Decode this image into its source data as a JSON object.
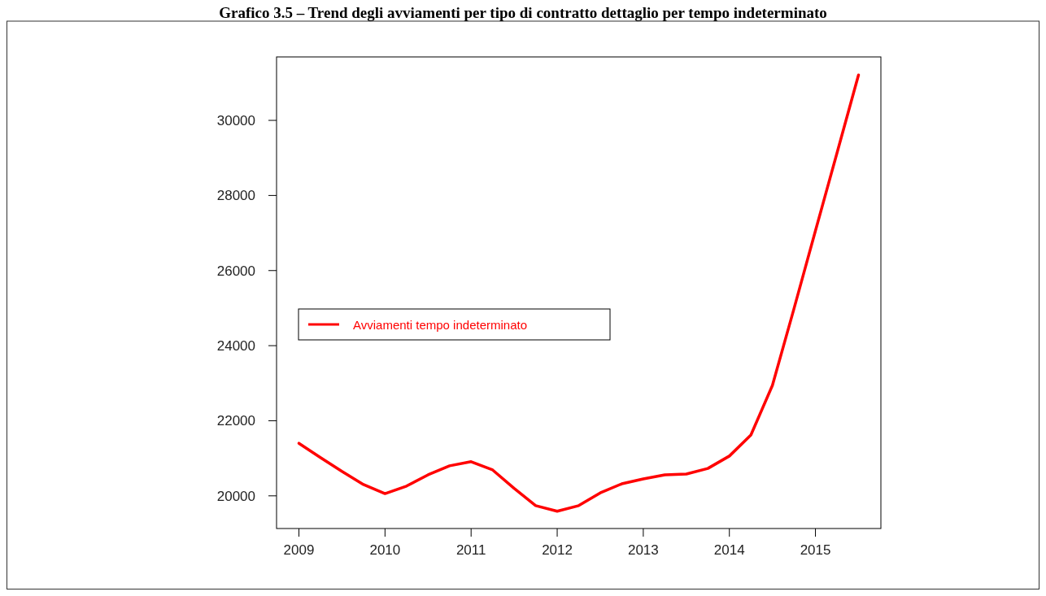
{
  "chart_data": {
    "type": "line",
    "title": "Grafico 3.5 – Trend degli avviamenti per tipo di contratto dettaglio per tempo indeterminato",
    "x": [
      2009,
      2009.25,
      2009.5,
      2009.75,
      2010,
      2010.25,
      2010.5,
      2010.75,
      2011,
      2011.25,
      2011.5,
      2011.75,
      2012,
      2012.25,
      2012.5,
      2012.75,
      2013,
      2013.25,
      2013.5,
      2013.75,
      2014,
      2014.25,
      2014.5,
      2014.75,
      2015,
      2015.25,
      2015.5
    ],
    "series": [
      {
        "name": "Avviamenti tempo indeterminato",
        "color": "#ff0000",
        "values": [
          21400,
          21020,
          20650,
          20300,
          20060,
          20260,
          20560,
          20800,
          20910,
          20690,
          20200,
          19740,
          19590,
          19740,
          20080,
          20320,
          20450,
          20560,
          20580,
          20730,
          21060,
          21620,
          22940,
          24980,
          27060,
          29130,
          31210
        ]
      }
    ],
    "xlim": [
      2008.74,
      2015.76
    ],
    "ylim": [
      19130,
      31690
    ],
    "xticks": [
      2009,
      2010,
      2011,
      2012,
      2013,
      2014,
      2015
    ],
    "yticks": [
      20000,
      22000,
      24000,
      26000,
      28000,
      30000
    ],
    "grid": false,
    "legend": "left",
    "line_style": "solid",
    "marker": "none"
  }
}
